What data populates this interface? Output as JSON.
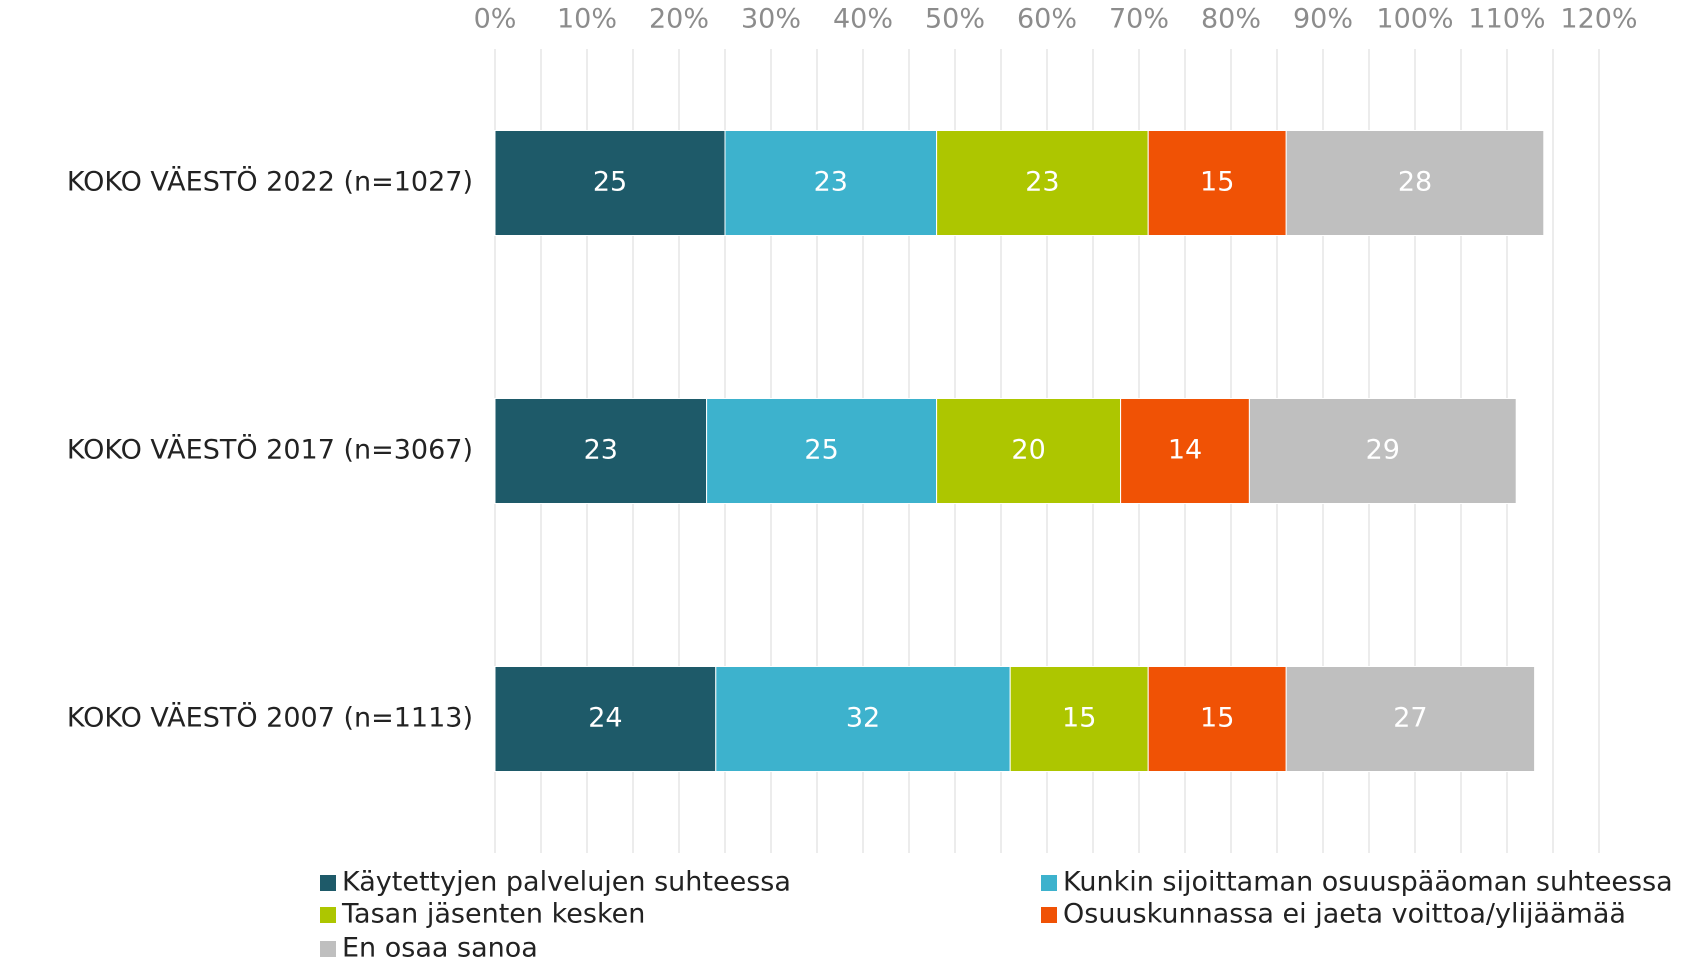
{
  "chart_data": {
    "type": "stacked_barh",
    "categories": [
      "KOKO VÄESTÖ 2022 (n=1027)",
      "KOKO VÄESTÖ 2017 (n=3067)",
      "KOKO VÄESTÖ 2007 (n=1113)"
    ],
    "series": [
      {
        "name": "Käytettyjen palvelujen suhteessa",
        "color": "#1e5a69",
        "values": [
          25,
          23,
          24
        ]
      },
      {
        "name": "Kunkin sijoittaman osuuspääoman suhteessa",
        "color": "#3db2cd",
        "values": [
          23,
          25,
          32
        ]
      },
      {
        "name": "Tasan jäsenten kesken",
        "color": "#adc600",
        "values": [
          23,
          20,
          15
        ]
      },
      {
        "name": "Osuuskunnassa ei jaeta voittoa/ylijäämää",
        "color": "#f05205",
        "values": [
          15,
          14,
          15
        ]
      },
      {
        "name": "En osaa sanoa",
        "color": "#bfbfbf",
        "values": [
          28,
          29,
          27
        ]
      }
    ],
    "xlim": [
      0,
      120
    ],
    "xticks": [
      {
        "value": 0,
        "label": "0%"
      },
      {
        "value": 10,
        "label": "10%"
      },
      {
        "value": 20,
        "label": "20%"
      },
      {
        "value": 30,
        "label": "30%"
      },
      {
        "value": 40,
        "label": "40%"
      },
      {
        "value": 50,
        "label": "50%"
      },
      {
        "value": 60,
        "label": "60%"
      },
      {
        "value": 70,
        "label": "70%"
      },
      {
        "value": 80,
        "label": "80%"
      },
      {
        "value": 90,
        "label": "90%"
      },
      {
        "value": 100,
        "label": "100%"
      },
      {
        "value": 110,
        "label": "110%"
      },
      {
        "value": 120,
        "label": "120%"
      }
    ],
    "minor_grid": [
      5,
      15,
      25,
      35,
      45,
      55,
      65,
      75,
      85,
      95,
      105,
      115
    ],
    "grid": true,
    "legend": "bottom"
  }
}
